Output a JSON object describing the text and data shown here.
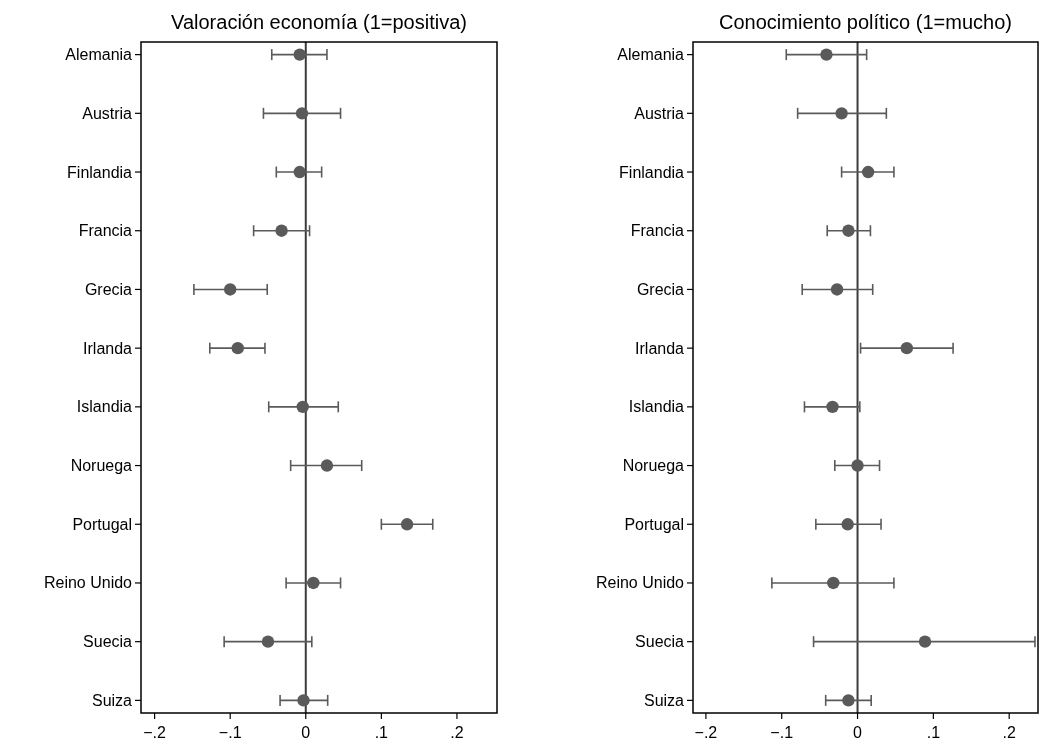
{
  "chart_data": [
    {
      "type": "scatter",
      "orientation": "horizontal",
      "title": "Valoración economía (1=positiva)",
      "categories": [
        "Alemania",
        "Austria",
        "Finlandia",
        "Francia",
        "Grecia",
        "Irlanda",
        "Islandia",
        "Noruega",
        "Portugal",
        "Reino Unido",
        "Suecia",
        "Suiza"
      ],
      "values": [
        -0.008,
        -0.005,
        -0.008,
        -0.032,
        -0.1,
        -0.09,
        -0.004,
        0.028,
        0.134,
        0.01,
        -0.05,
        -0.003
      ],
      "errors": [
        [
          -0.045,
          0.028
        ],
        [
          -0.056,
          0.046
        ],
        [
          -0.039,
          0.021
        ],
        [
          -0.069,
          0.005
        ],
        [
          -0.148,
          -0.051
        ],
        [
          -0.127,
          -0.054
        ],
        [
          -0.049,
          0.043
        ],
        [
          -0.02,
          0.074
        ],
        [
          0.1,
          0.168
        ],
        [
          -0.026,
          0.046
        ],
        [
          -0.108,
          0.008
        ],
        [
          -0.034,
          0.029
        ]
      ],
      "color": "#5a5a5a",
      "marker": "circle",
      "xlim": [
        -0.218,
        0.253
      ],
      "xticks": [
        {
          "value": -0.2,
          "label": "−.2"
        },
        {
          "value": -0.1,
          "label": "−.1"
        },
        0,
        {
          "value": 0.1,
          "label": ".1"
        },
        {
          "value": 0.2,
          "label": ".2"
        }
      ],
      "ref_lines": [
        {
          "axis": "x",
          "value": 0,
          "color": "#3c3c3c"
        }
      ]
    },
    {
      "type": "scatter",
      "orientation": "horizontal",
      "title": "Conocimiento político (1=mucho)",
      "categories": [
        "Alemania",
        "Austria",
        "Finlandia",
        "Francia",
        "Grecia",
        "Irlanda",
        "Islandia",
        "Noruega",
        "Portugal",
        "Reino Unido",
        "Suecia",
        "Suiza"
      ],
      "values": [
        -0.041,
        -0.021,
        0.014,
        -0.012,
        -0.027,
        0.065,
        -0.033,
        0.0,
        -0.013,
        -0.032,
        0.089,
        -0.012
      ],
      "errors": [
        [
          -0.094,
          0.012
        ],
        [
          -0.079,
          0.038
        ],
        [
          -0.021,
          0.048
        ],
        [
          -0.04,
          0.017
        ],
        [
          -0.073,
          0.02
        ],
        [
          0.004,
          0.126
        ],
        [
          -0.07,
          0.003
        ],
        [
          -0.03,
          0.029
        ],
        [
          -0.055,
          0.031
        ],
        [
          -0.113,
          0.048
        ],
        [
          -0.058,
          0.234
        ],
        [
          -0.042,
          0.018
        ]
      ],
      "color": "#5a5a5a",
      "marker": "circle",
      "xlim": [
        -0.217,
        0.238
      ],
      "xticks": [
        {
          "value": -0.2,
          "label": "−.2"
        },
        {
          "value": -0.1,
          "label": "−.1"
        },
        0,
        {
          "value": 0.1,
          "label": ".1"
        },
        {
          "value": 0.2,
          "label": ".2"
        }
      ],
      "ref_lines": [
        {
          "axis": "x",
          "value": 0,
          "color": "#3c3c3c"
        }
      ]
    }
  ]
}
